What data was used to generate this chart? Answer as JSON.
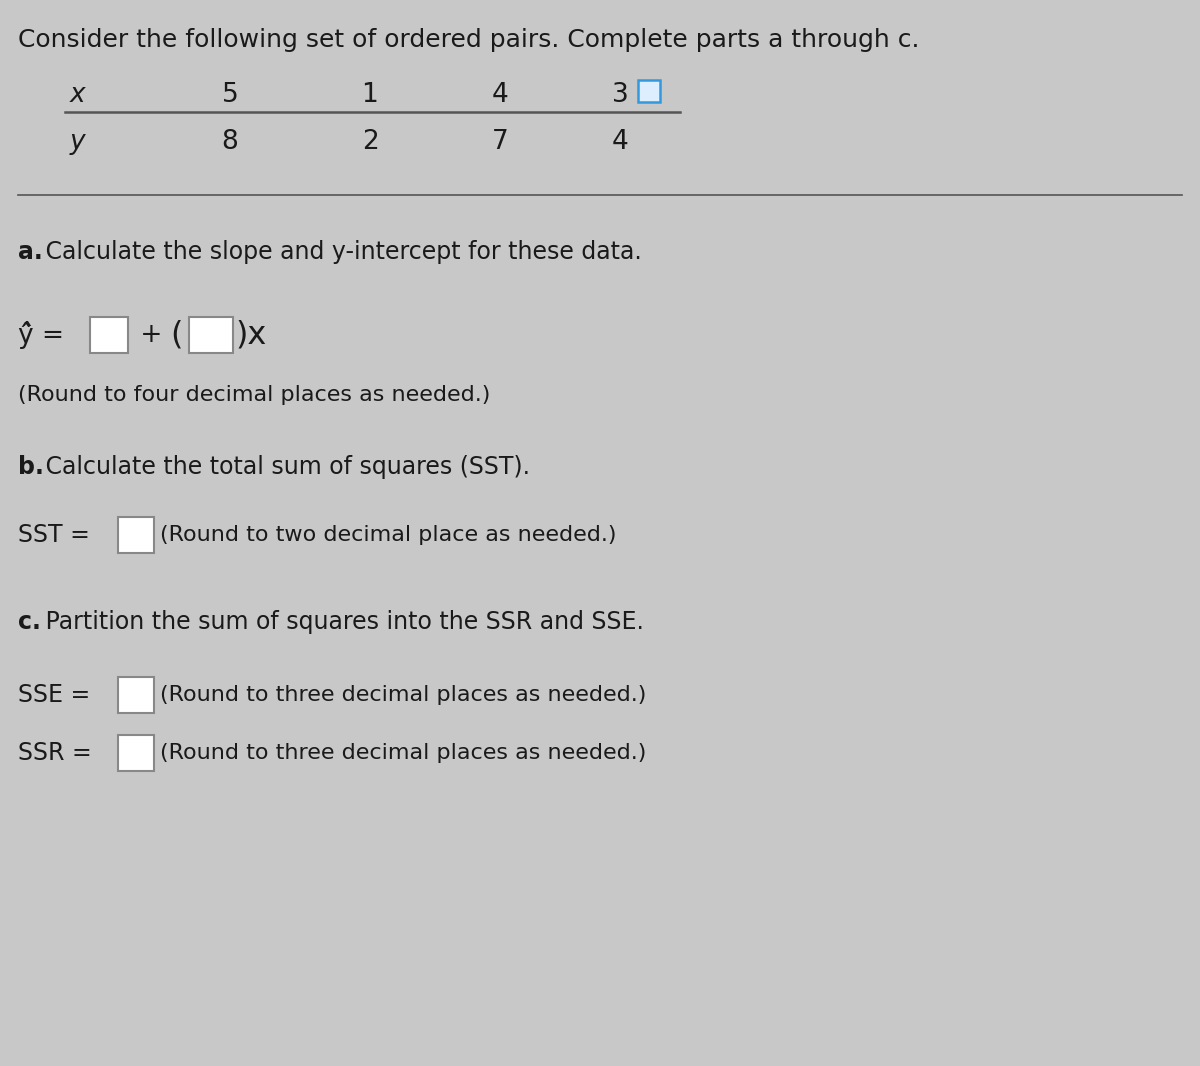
{
  "title": "Consider the following set of ordered pairs. Complete parts a through c.",
  "x_label": "x",
  "y_label": "y",
  "x_values": [
    "5",
    "1",
    "4",
    "3"
  ],
  "y_values": [
    "8",
    "2",
    "7",
    "4"
  ],
  "part_a_label_bold": "a.",
  "part_a_label_rest": " Calculate the slope and y-intercept for these data.",
  "part_b_label_bold": "b.",
  "part_b_label_rest": " Calculate the total sum of squares (SST).",
  "part_c_label_bold": "c.",
  "part_c_label_rest": " Partition the sum of squares into the SSR and SSE.",
  "part_a_round_note": "(Round to four decimal places as needed.)",
  "part_b_round_note": "(Round to two decimal place as needed.)",
  "part_c_round_note": "(Round to three decimal places as needed.)",
  "bg_color": "#c8c8c8",
  "text_color": "#1a1a1a",
  "box_fill": "#ffffff",
  "box_border": "#888888",
  "line_color": "#555555",
  "font_size_title": 18,
  "font_size_body": 17,
  "font_size_table": 19,
  "font_size_eq": 19,
  "font_size_note": 16
}
